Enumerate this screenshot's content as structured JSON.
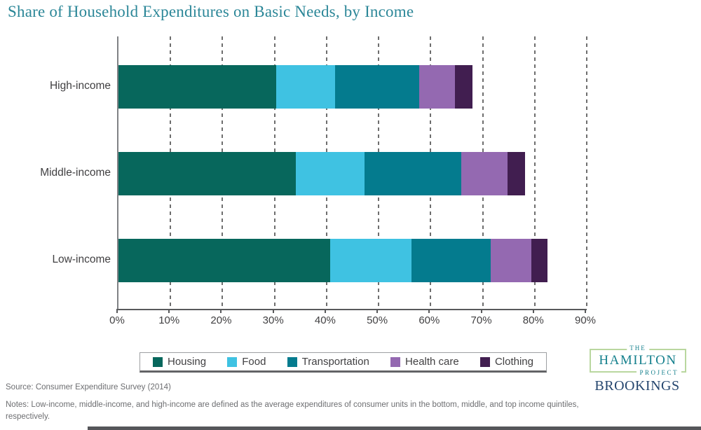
{
  "title": "Share of Household Expenditures on Basic Needs, by Income",
  "chart_data": {
    "type": "bar",
    "stacked": true,
    "orientation": "horizontal",
    "categories": [
      "High-income",
      "Middle-income",
      "Low-income"
    ],
    "series": [
      {
        "name": "Housing",
        "color": "#07675C",
        "values": [
          30.3,
          34.1,
          40.7
        ]
      },
      {
        "name": "Food",
        "color": "#3FC2E2",
        "values": [
          11.3,
          13.2,
          15.6
        ]
      },
      {
        "name": "Transportation",
        "color": "#047B8E",
        "values": [
          16.2,
          18.6,
          15.3
        ]
      },
      {
        "name": "Health care",
        "color": "#9469B1",
        "values": [
          6.9,
          8.9,
          7.7
        ]
      },
      {
        "name": "Clothing",
        "color": "#411E50",
        "values": [
          3.4,
          3.4,
          3.2
        ]
      }
    ],
    "totals": [
      68.1,
      78.2,
      82.5
    ],
    "x_ticks": [
      "0%",
      "10%",
      "20%",
      "30%",
      "40%",
      "50%",
      "60%",
      "70%",
      "80%",
      "90%"
    ],
    "xlim": [
      0,
      90
    ],
    "grid": "vertical-dashed",
    "legend_position": "bottom"
  },
  "footer": {
    "source": "Source: Consumer Expenditure Survey (2014)",
    "notes": "Notes: Low-income, middle-income, and high-income are defined as the average expenditures of consumer units in the bottom, middle, and top income quintiles, respectively."
  },
  "branding": {
    "the": "THE",
    "hamilton": "HAMILTON",
    "project": "PROJECT",
    "brookings": "BROOKINGS"
  },
  "colors": {
    "title": "#2C8798",
    "axis": "#58595B",
    "gridline": "#6E6E6E",
    "label_text": "#414042",
    "footer_text": "#6D6E71",
    "hamilton_teal": "#15808D",
    "hamilton_border_green": "#B9D79F",
    "brookings_navy": "#24456E"
  }
}
